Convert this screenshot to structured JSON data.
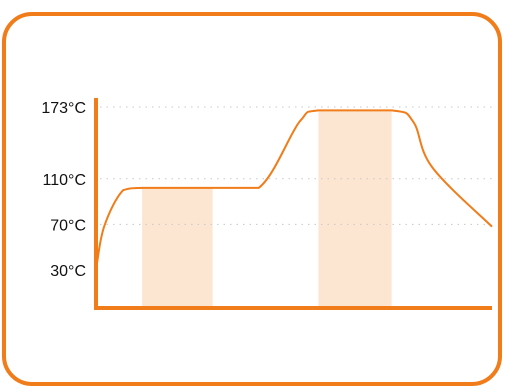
{
  "chart_data": {
    "type": "line",
    "title": "",
    "xlabel": "",
    "ylabel": "",
    "y_ticks": [
      {
        "value": 30,
        "label": "30°C",
        "gridline": false
      },
      {
        "value": 70,
        "label": "70°C",
        "gridline": true
      },
      {
        "value": 110,
        "label": "110°C",
        "gridline": true
      },
      {
        "value": 173,
        "label": "173°C",
        "gridline": true
      }
    ],
    "grid": "dotted",
    "x": [
      0,
      3,
      10,
      17,
      30,
      43,
      60,
      75,
      82,
      109,
      117,
      124,
      146
    ],
    "series": [
      {
        "values": [
          30,
          68,
          100,
          102,
          102,
          102,
          102,
          160,
          170,
          170,
          160,
          120,
          68
        ]
      }
    ],
    "shaded_ranges": [
      {
        "x_start": 17,
        "x_end": 43
      },
      {
        "x_start": 82,
        "x_end": 109
      }
    ],
    "colors": {
      "accent": "#F07C1A",
      "shade": "#FCE6D2",
      "grid": "#C8C8C8",
      "border": "#F07C1A"
    }
  }
}
